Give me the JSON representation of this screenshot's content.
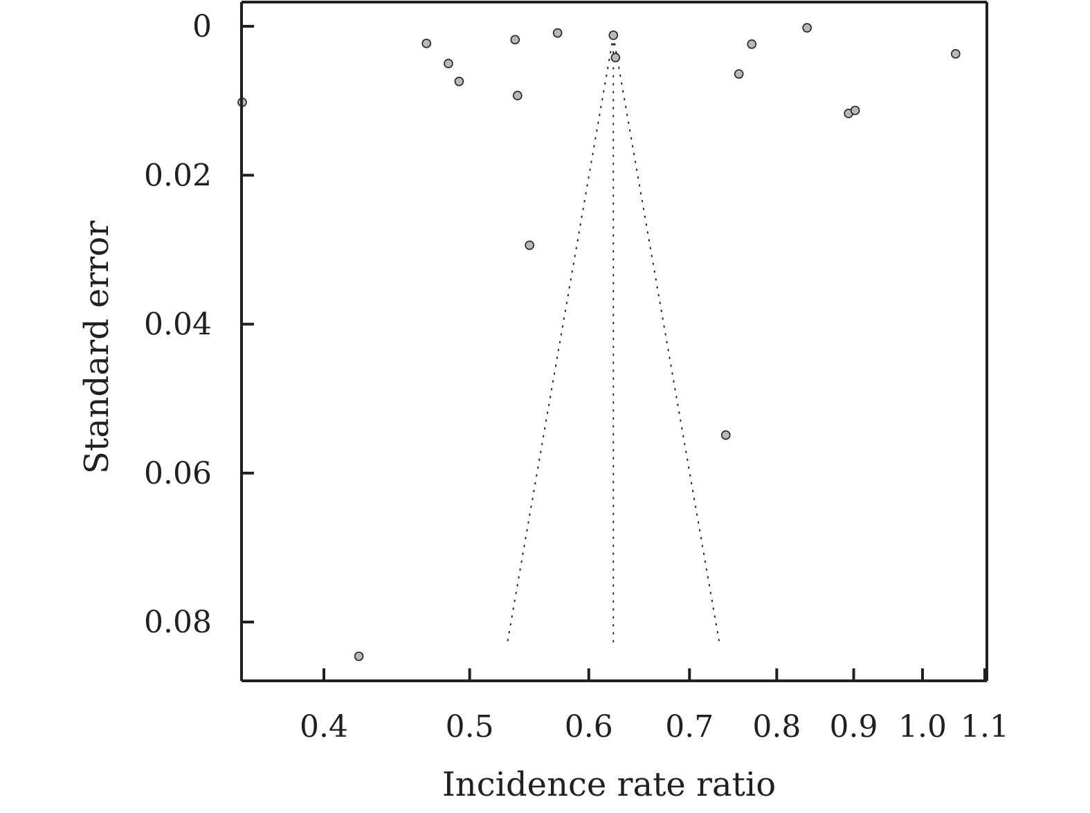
{
  "chart_data": {
    "type": "scatter",
    "subtype": "funnel-plot",
    "title": "",
    "xlabel": "Incidence rate ratio",
    "ylabel": "Standard error",
    "x_scale": "log",
    "y_axis_inverted": true,
    "xlim": [
      0.35,
      1.1
    ],
    "ylim": [
      0,
      0.0877
    ],
    "x_ticks": [
      0.4,
      0.5,
      0.6,
      0.7,
      0.8,
      0.9,
      1.0,
      1.1
    ],
    "x_tick_labels": [
      "0.4",
      "0.5",
      "0.6",
      "0.7",
      "0.8",
      "0.9",
      "1.0",
      "1.1"
    ],
    "y_ticks": [
      0,
      0.02,
      0.04,
      0.06,
      0.08
    ],
    "y_tick_labels": [
      "0",
      "0.02",
      "0.04",
      "0.06",
      "0.08"
    ],
    "grid": false,
    "pooled_estimate": 0.623,
    "funnel_se_max": 0.083,
    "points": [
      {
        "x": 0.353,
        "y": 0.0102
      },
      {
        "x": 0.422,
        "y": 0.0846
      },
      {
        "x": 0.468,
        "y": 0.0023
      },
      {
        "x": 0.484,
        "y": 0.005
      },
      {
        "x": 0.492,
        "y": 0.0074
      },
      {
        "x": 0.536,
        "y": 0.0018
      },
      {
        "x": 0.538,
        "y": 0.0093
      },
      {
        "x": 0.548,
        "y": 0.0294
      },
      {
        "x": 0.572,
        "y": 0.0009
      },
      {
        "x": 0.623,
        "y": 0.0012
      },
      {
        "x": 0.625,
        "y": 0.0042
      },
      {
        "x": 0.74,
        "y": 0.0549
      },
      {
        "x": 0.755,
        "y": 0.0064
      },
      {
        "x": 0.77,
        "y": 0.0024
      },
      {
        "x": 0.838,
        "y": 0.0002
      },
      {
        "x": 0.893,
        "y": 0.0117
      },
      {
        "x": 0.902,
        "y": 0.0113
      },
      {
        "x": 1.052,
        "y": 0.0037
      }
    ],
    "colors": {
      "axis": "#231f20",
      "marker_fill": "#b8b8b8",
      "marker_stroke": "#231f20",
      "funnel_line": "#231f20"
    }
  }
}
